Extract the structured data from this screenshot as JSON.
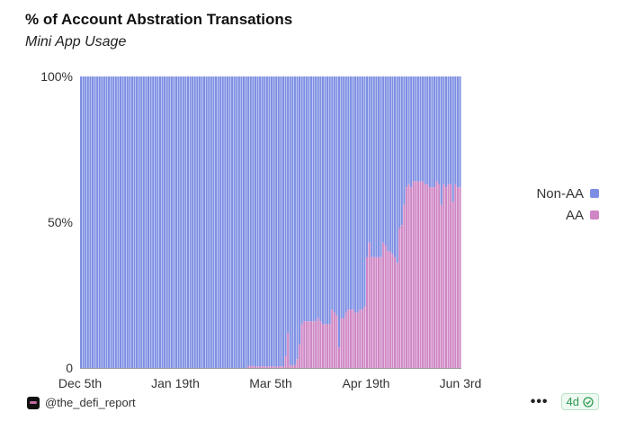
{
  "header": {
    "title": "% of Account Abstration Transations",
    "subtitle": "Mini App Usage"
  },
  "footer": {
    "author": "@the_defi_report",
    "more_icon": "more-dots-icon",
    "freshness": "4d",
    "freshness_icon": "check-circle-icon"
  },
  "colors": {
    "non_aa": "#7d8fe3",
    "aa": "#cf86c4"
  },
  "chart_data": {
    "type": "bar",
    "stacked": true,
    "normalized": true,
    "title": "% of Account Abstration Transations",
    "subtitle": "Mini App Usage",
    "x_ticks": [
      "Dec 5th",
      "Jan 19th",
      "Mar 5th",
      "Apr 19th",
      "Jun 3rd"
    ],
    "y_ticks": [
      "0",
      "50%",
      "100%"
    ],
    "ylim": [
      0,
      100
    ],
    "x_start": "2024-12-05",
    "x_end": "2025-06-03",
    "legend": {
      "position": "right",
      "entries": [
        "Non-AA",
        "AA"
      ]
    },
    "series": [
      {
        "name": "Non-AA",
        "color": "#7d8fe3",
        "note": "remainder to 100%"
      },
      {
        "name": "AA",
        "color": "#cf86c4",
        "values": [
          0,
          0,
          0,
          0,
          0,
          0,
          0,
          0,
          0,
          0,
          0,
          0,
          0,
          0,
          0,
          0,
          0,
          0,
          0,
          0,
          0,
          0,
          0,
          0,
          0,
          0,
          0,
          0,
          0,
          0,
          0,
          0,
          0,
          0,
          0,
          0,
          0,
          0,
          0,
          0,
          0,
          0,
          0,
          0,
          0,
          0,
          0,
          0,
          0,
          0,
          0,
          0,
          0,
          0,
          0,
          0,
          0,
          0,
          0,
          0,
          0,
          0,
          0,
          0,
          0,
          0,
          0,
          0,
          0,
          0,
          0,
          0,
          0.5,
          0.8,
          0.6,
          0.5,
          0.4,
          0.5,
          0.6,
          0.5,
          0.4,
          0.5,
          0.6,
          0.5,
          0.4,
          0.5,
          0.6,
          0.5,
          4,
          12,
          1,
          0.8,
          1,
          3,
          8,
          15,
          16,
          16,
          16,
          16,
          16,
          16,
          17,
          16,
          15,
          15,
          15,
          15,
          20,
          19,
          18,
          7,
          17,
          17,
          19,
          20,
          20,
          20,
          19,
          19,
          20,
          20,
          21,
          38,
          43,
          38,
          38,
          38,
          38,
          38,
          43,
          42,
          40,
          40,
          39,
          38,
          36,
          48,
          49,
          56,
          62,
          63,
          62,
          64,
          64,
          64,
          64,
          64,
          63,
          63,
          62,
          62,
          62,
          64,
          63,
          56,
          63,
          62,
          63,
          63,
          57,
          63,
          62,
          62
        ]
      }
    ]
  }
}
